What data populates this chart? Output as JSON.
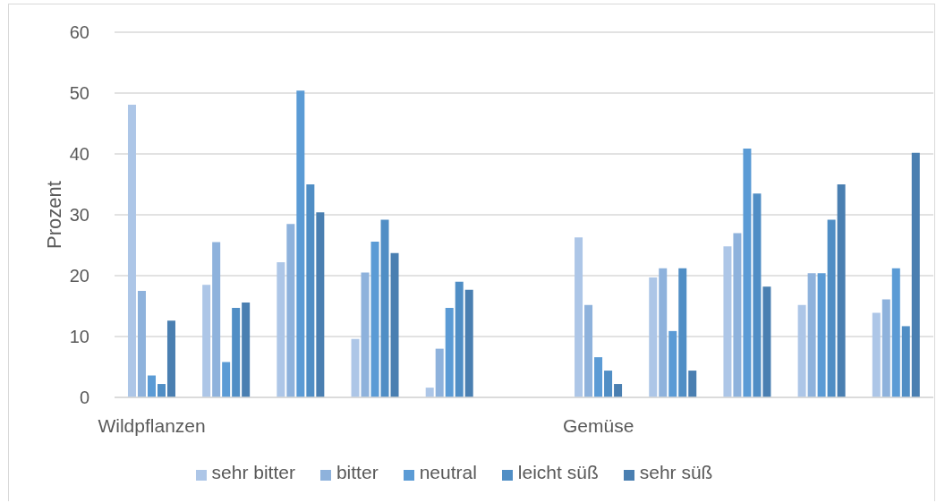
{
  "chart_data": {
    "type": "bar",
    "ylabel": "Prozent",
    "categories": [
      "Wildpflanzen",
      null,
      null,
      null,
      null,
      null,
      "Gemüse",
      null,
      null,
      null,
      null
    ],
    "series": [
      {
        "name": "sehr bitter",
        "color": "#adc6e7",
        "values": [
          48.1,
          18.5,
          22.2,
          9.6,
          1.6,
          null,
          26.3,
          19.7,
          24.8,
          15.2,
          13.9
        ]
      },
      {
        "name": "bitter",
        "color": "#8eb2dc",
        "values": [
          17.5,
          25.5,
          28.5,
          20.5,
          8.0,
          null,
          15.2,
          21.2,
          27.0,
          20.4,
          16.1
        ]
      },
      {
        "name": "neutral",
        "color": "#5b9bd5",
        "values": [
          3.6,
          5.8,
          50.4,
          25.6,
          14.7,
          null,
          6.6,
          10.9,
          40.9,
          20.4,
          21.2
        ]
      },
      {
        "name": "leicht süß",
        "color": "#508ec5",
        "values": [
          2.2,
          14.7,
          35.0,
          29.2,
          19.0,
          null,
          4.4,
          21.2,
          33.5,
          29.2,
          11.7
        ]
      },
      {
        "name": "sehr süß",
        "color": "#4a7fb1",
        "values": [
          12.6,
          15.6,
          30.4,
          23.7,
          17.7,
          null,
          2.2,
          4.4,
          18.2,
          35.0,
          40.2
        ]
      }
    ],
    "ylim": [
      0,
      60
    ],
    "yticks": [
      0,
      10,
      20,
      30,
      40,
      50,
      60
    ],
    "grid": "y",
    "legend": "bottom"
  }
}
